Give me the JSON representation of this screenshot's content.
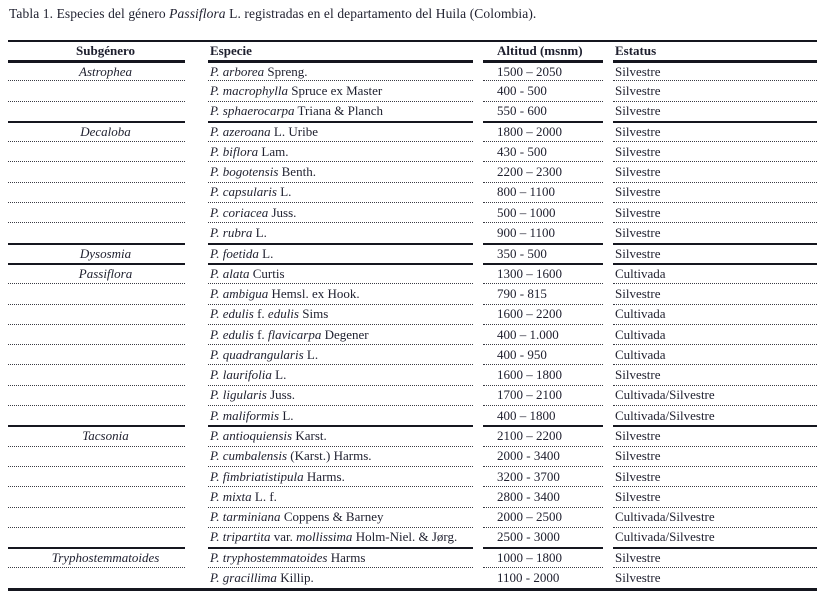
{
  "title": {
    "prefix": "Tabla 1. Especies del género ",
    "genus_italic": "Passiflora",
    "suffix": " L. registradas en el departamento del Huila (Colombia)."
  },
  "table": {
    "headers": [
      "Subgénero",
      "Especie",
      "Altitud (msnm)",
      "Estatus"
    ],
    "status_values_seen": [
      "Silvestre",
      "Cultivada",
      "Cultivada/Silvestre"
    ],
    "rows": [
      {
        "subgenero": "Astrophea",
        "group_start": true,
        "especie": [
          {
            "text": "P. arborea",
            "italic": true
          },
          {
            "text": " Spreng.",
            "italic": false
          }
        ],
        "altitud": "1500 – 2050",
        "estatus": "Silvestre"
      },
      {
        "subgenero": "",
        "group_start": false,
        "especie": [
          {
            "text": "P. macrophylla",
            "italic": true
          },
          {
            "text": " Spruce ex Master",
            "italic": false
          }
        ],
        "altitud": "400 - 500",
        "estatus": "Silvestre"
      },
      {
        "subgenero": "",
        "group_start": false,
        "especie": [
          {
            "text": "P. sphaerocarpa",
            "italic": true
          },
          {
            "text": " Triana & Planch",
            "italic": false
          }
        ],
        "altitud": "550 - 600",
        "estatus": "Silvestre"
      },
      {
        "subgenero": "Decaloba",
        "group_start": true,
        "especie": [
          {
            "text": "P. azeroana",
            "italic": true
          },
          {
            "text": " L. Uribe",
            "italic": false
          }
        ],
        "altitud": "1800 – 2000",
        "estatus": "Silvestre"
      },
      {
        "subgenero": "",
        "group_start": false,
        "especie": [
          {
            "text": "P. biflora",
            "italic": true
          },
          {
            "text": " Lam.",
            "italic": false
          }
        ],
        "altitud": "430 - 500",
        "estatus": "Silvestre"
      },
      {
        "subgenero": "",
        "group_start": false,
        "especie": [
          {
            "text": "P. bogotensis",
            "italic": true
          },
          {
            "text": " Benth.",
            "italic": false
          }
        ],
        "altitud": "2200 – 2300",
        "estatus": "Silvestre"
      },
      {
        "subgenero": "",
        "group_start": false,
        "especie": [
          {
            "text": "P. capsularis",
            "italic": true
          },
          {
            "text": " L.",
            "italic": false
          }
        ],
        "altitud": "800 – 1100",
        "estatus": "Silvestre"
      },
      {
        "subgenero": "",
        "group_start": false,
        "especie": [
          {
            "text": "P. coriacea",
            "italic": true
          },
          {
            "text": " Juss.",
            "italic": false
          }
        ],
        "altitud": "500 – 1000",
        "estatus": "Silvestre"
      },
      {
        "subgenero": "",
        "group_start": false,
        "especie": [
          {
            "text": "P. rubra",
            "italic": true
          },
          {
            "text": " L.",
            "italic": false
          }
        ],
        "altitud": "900 – 1100",
        "estatus": "Silvestre"
      },
      {
        "subgenero": "Dysosmia",
        "group_start": true,
        "especie": [
          {
            "text": "P. foetida",
            "italic": true
          },
          {
            "text": " L.",
            "italic": false
          }
        ],
        "altitud": "350 - 500",
        "estatus": "Silvestre"
      },
      {
        "subgenero": "Passiflora",
        "group_start": true,
        "especie": [
          {
            "text": "P. alata",
            "italic": true
          },
          {
            "text": " Curtis",
            "italic": false
          }
        ],
        "altitud": "1300 – 1600",
        "estatus": "Cultivada"
      },
      {
        "subgenero": "",
        "group_start": false,
        "especie": [
          {
            "text": "P. ambigua",
            "italic": true
          },
          {
            "text": " Hemsl. ex Hook.",
            "italic": false
          }
        ],
        "altitud": "790 - 815",
        "estatus": "Silvestre"
      },
      {
        "subgenero": "",
        "group_start": false,
        "especie": [
          {
            "text": "P. edulis",
            "italic": true
          },
          {
            "text": " f. ",
            "italic": false
          },
          {
            "text": "edulis",
            "italic": true
          },
          {
            "text": " Sims",
            "italic": false
          }
        ],
        "altitud": "1600 – 2200",
        "estatus": "Cultivada"
      },
      {
        "subgenero": "",
        "group_start": false,
        "especie": [
          {
            "text": "P. edulis",
            "italic": true
          },
          {
            "text": " f. ",
            "italic": false
          },
          {
            "text": "flavicarpa",
            "italic": true
          },
          {
            "text": " Degener",
            "italic": false
          }
        ],
        "altitud": "400 – 1.000",
        "estatus": "Cultivada"
      },
      {
        "subgenero": "",
        "group_start": false,
        "especie": [
          {
            "text": "P. quadrangularis",
            "italic": true
          },
          {
            "text": " L.",
            "italic": false
          }
        ],
        "altitud": "400 - 950",
        "estatus": "Cultivada"
      },
      {
        "subgenero": "",
        "group_start": false,
        "especie": [
          {
            "text": "P. laurifolia",
            "italic": true
          },
          {
            "text": " L.",
            "italic": false
          }
        ],
        "altitud": "1600 – 1800",
        "estatus": "Silvestre"
      },
      {
        "subgenero": "",
        "group_start": false,
        "especie": [
          {
            "text": "P. ligularis",
            "italic": true
          },
          {
            "text": " Juss.",
            "italic": false
          }
        ],
        "altitud": "1700 – 2100",
        "estatus": "Cultivada/Silvestre"
      },
      {
        "subgenero": "",
        "group_start": false,
        "especie": [
          {
            "text": "P. maliformis",
            "italic": true
          },
          {
            "text": " L.",
            "italic": false
          }
        ],
        "altitud": "400 – 1800",
        "estatus": "Cultivada/Silvestre"
      },
      {
        "subgenero": "Tacsonia",
        "group_start": true,
        "especie": [
          {
            "text": "P. antioquiensis",
            "italic": true
          },
          {
            "text": " Karst.",
            "italic": false
          }
        ],
        "altitud": "2100 – 2200",
        "estatus": "Silvestre"
      },
      {
        "subgenero": "",
        "group_start": false,
        "especie": [
          {
            "text": "P. cumbalensis",
            "italic": true
          },
          {
            "text": " (Karst.) Harms.",
            "italic": false
          }
        ],
        "altitud": "2000 - 3400",
        "estatus": "Silvestre"
      },
      {
        "subgenero": "",
        "group_start": false,
        "especie": [
          {
            "text": "P. fimbriatistipula",
            "italic": true
          },
          {
            "text": " Harms.",
            "italic": false
          }
        ],
        "altitud": "3200 - 3700",
        "estatus": "Silvestre"
      },
      {
        "subgenero": "",
        "group_start": false,
        "especie": [
          {
            "text": "P. mixta",
            "italic": true
          },
          {
            "text": " L. f.",
            "italic": false
          }
        ],
        "altitud": "2800 - 3400",
        "estatus": "Silvestre"
      },
      {
        "subgenero": "",
        "group_start": false,
        "especie": [
          {
            "text": "P. tarminiana",
            "italic": true
          },
          {
            "text": " Coppens & Barney",
            "italic": false
          }
        ],
        "altitud": "2000 – 2500",
        "estatus": "Cultivada/Silvestre"
      },
      {
        "subgenero": "",
        "group_start": false,
        "especie": [
          {
            "text": "P. tripartita",
            "italic": true
          },
          {
            "text": " var. ",
            "italic": false
          },
          {
            "text": "mollissima",
            "italic": true
          },
          {
            "text": " Holm-Niel. & Jørg.",
            "italic": false
          }
        ],
        "altitud": "2500 - 3000",
        "estatus": "Cultivada/Silvestre"
      },
      {
        "subgenero": "Tryphostemmatoides",
        "group_start": true,
        "especie": [
          {
            "text": "P. tryphostemmatoides",
            "italic": true
          },
          {
            "text": " Harms",
            "italic": false
          }
        ],
        "altitud": "1000 – 1800",
        "estatus": "Silvestre"
      },
      {
        "subgenero": "",
        "group_start": false,
        "especie": [
          {
            "text": "P. gracillima",
            "italic": true
          },
          {
            "text": " Killip.",
            "italic": false
          }
        ],
        "altitud": "1100 - 2000",
        "estatus": "Silvestre"
      }
    ]
  }
}
